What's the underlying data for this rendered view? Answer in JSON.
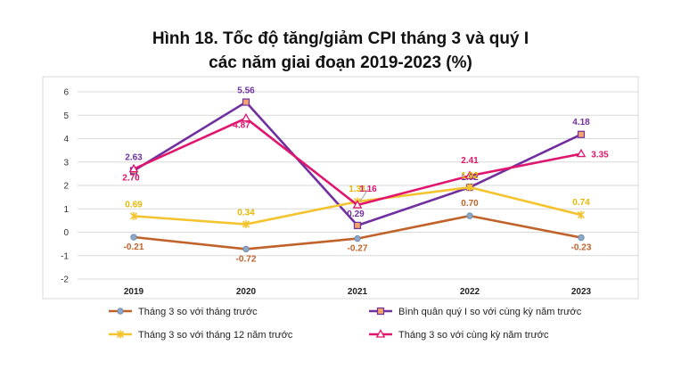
{
  "title": {
    "line1": "Hình 18. Tốc độ tăng/giảm CPI tháng 3 và quý I",
    "line2": "các năm giai đoạn 2019-2023 (%)"
  },
  "chart_data": {
    "type": "line",
    "x": [
      "2019",
      "2020",
      "2021",
      "2022",
      "2023"
    ],
    "ylim": [
      -2,
      6
    ],
    "yticks": [
      -2,
      -1,
      0,
      1,
      2,
      3,
      4,
      5,
      6
    ],
    "grid": true,
    "legend_position": "bottom",
    "series": [
      {
        "name": "Tháng 3 so với tháng trước",
        "values": [
          -0.21,
          -0.72,
          -0.27,
          0.7,
          -0.23
        ],
        "labels": [
          "-0.21",
          "-0.72",
          "-0.27",
          "0.70",
          "-0.23"
        ],
        "color": "#C0622A",
        "marker": "circle"
      },
      {
        "name": "Bình quân quý I so với cùng kỳ năm trước",
        "values": [
          2.63,
          5.56,
          0.29,
          1.92,
          4.18
        ],
        "labels": [
          "2.63",
          "5.56",
          "0.29",
          "1.92",
          "4.18"
        ],
        "color": "#7030A0",
        "marker": "square"
      },
      {
        "name": "Tháng 3 so với tháng 12 năm trước",
        "values": [
          0.69,
          0.34,
          1.31,
          1.92,
          0.74
        ],
        "labels": [
          "0.69",
          "0.34",
          "1.31",
          "1.92",
          "0.74"
        ],
        "color": "#F4C430",
        "marker": "star"
      },
      {
        "name": "Tháng 3 so với cùng kỳ năm trước",
        "values": [
          2.7,
          4.87,
          1.16,
          2.41,
          3.35
        ],
        "labels": [
          "2.70",
          "4.87",
          "1.16",
          "2.41",
          "3.35"
        ],
        "color": "#E0156E",
        "marker": "triangle"
      }
    ]
  }
}
